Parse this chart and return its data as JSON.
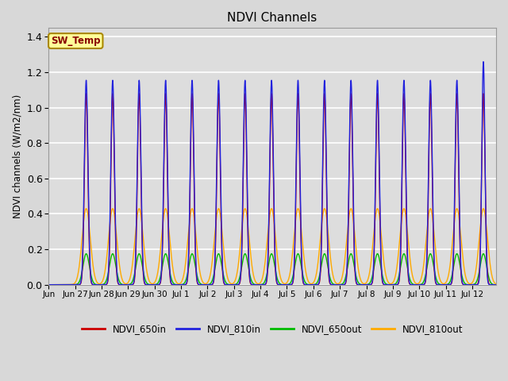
{
  "title": "NDVI Channels",
  "ylabel": "NDVI channels (W/m2/nm)",
  "xlabel": "",
  "ylim": [
    0.0,
    1.45
  ],
  "yticks": [
    0.0,
    0.2,
    0.4,
    0.6,
    0.8,
    1.0,
    1.2,
    1.4
  ],
  "line_colors": {
    "NDVI_650in": "#cc0000",
    "NDVI_810in": "#2222dd",
    "NDVI_650out": "#00bb00",
    "NDVI_810out": "#ffaa00"
  },
  "sw_temp_label": "SW_Temp",
  "sw_temp_text_color": "#880000",
  "sw_temp_bg_color": "#ffff99",
  "sw_temp_edge_color": "#aa8800",
  "axes_bg_color": "#dddddd",
  "grid_color": "#ffffff",
  "peak_650in": 1.08,
  "peak_810in": 1.155,
  "peak_650out": 0.175,
  "peak_810out": 0.43,
  "last_peak_810in": 1.26,
  "xtick_labels": [
    "Jun 27",
    "Jun 28",
    "Jun 29",
    "Jun 30",
    "Jul 1",
    "Jul 2",
    "Jul 3",
    "Jul 4",
    "Jul 5",
    "Jul 6",
    "Jul 7",
    "Jul 8",
    "Jul 9",
    "Jul 10",
    "Jul 11",
    "Jul 12"
  ],
  "figsize": [
    6.4,
    4.8
  ],
  "dpi": 100
}
